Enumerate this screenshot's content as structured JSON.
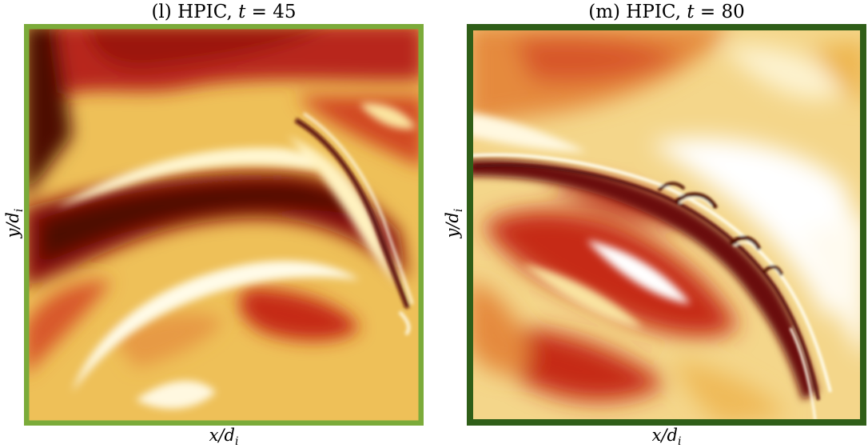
{
  "panels": [
    {
      "label": "(l)",
      "method": "HPIC",
      "time_var": "t",
      "time_value": "45",
      "xlabel": "x/d",
      "xlabel_sub": "i",
      "ylabel": "y/d",
      "ylabel_sub": "i",
      "frame_color": "#7bab3a"
    },
    {
      "label": "(m)",
      "method": "HPIC",
      "time_var": "t",
      "time_value": "80",
      "xlabel": "x/d",
      "xlabel_sub": "i",
      "ylabel": "y/d",
      "ylabel_sub": "i",
      "frame_color": "#2f5e18"
    }
  ],
  "chart_data": [
    {
      "type": "heatmap",
      "title": "(l) HPIC, t = 45",
      "xlabel": "x/d_i",
      "ylabel": "y/d_i",
      "colormap": [
        "#ffffff",
        "#f8e7a6",
        "#edbb55",
        "#e1772d",
        "#c62a18",
        "#8a0b0a",
        "#4d0806"
      ],
      "colorbar": "none"
    },
    {
      "type": "heatmap",
      "title": "(m) HPIC, t = 80",
      "xlabel": "x/d_i",
      "ylabel": "y/d_i",
      "colormap": [
        "#ffffff",
        "#f8e7a6",
        "#edbb55",
        "#e1772d",
        "#c62a18",
        "#8a0b0a",
        "#4d0806"
      ],
      "colorbar": "none"
    }
  ]
}
